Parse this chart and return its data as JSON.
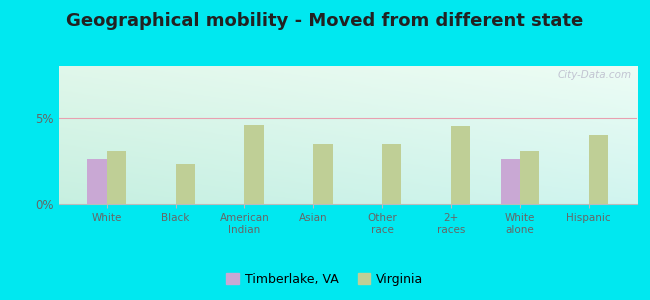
{
  "title": "Geographical mobility - Moved from different state",
  "categories": [
    "White",
    "Black",
    "American\nIndian",
    "Asian",
    "Other\nrace",
    "2+\nraces",
    "White\nalone",
    "Hispanic"
  ],
  "timberlake_values": [
    2.6,
    0.0,
    0.0,
    0.0,
    0.0,
    0.0,
    2.6,
    0.0
  ],
  "virginia_values": [
    3.1,
    2.3,
    4.6,
    3.5,
    3.5,
    4.5,
    3.1,
    4.0
  ],
  "timberlake_color": "#c9a8d4",
  "virginia_color": "#bfcf96",
  "outer_bg": "#00e8f0",
  "ylim": [
    0,
    8
  ],
  "yticks": [
    0,
    5
  ],
  "ytick_labels": [
    "0%",
    "5%"
  ],
  "bar_width": 0.28,
  "title_fontsize": 13,
  "legend_label_timberlake": "Timberlake, VA",
  "legend_label_virginia": "Virginia",
  "watermark": "City-Data.com",
  "grid_color": "#e8a0b0",
  "bg_top_left": "#e0f0e8",
  "bg_top_right": "#e8f8f0",
  "bg_bottom_left": "#c8eee0",
  "bg_bottom_right": "#b0e8e8"
}
